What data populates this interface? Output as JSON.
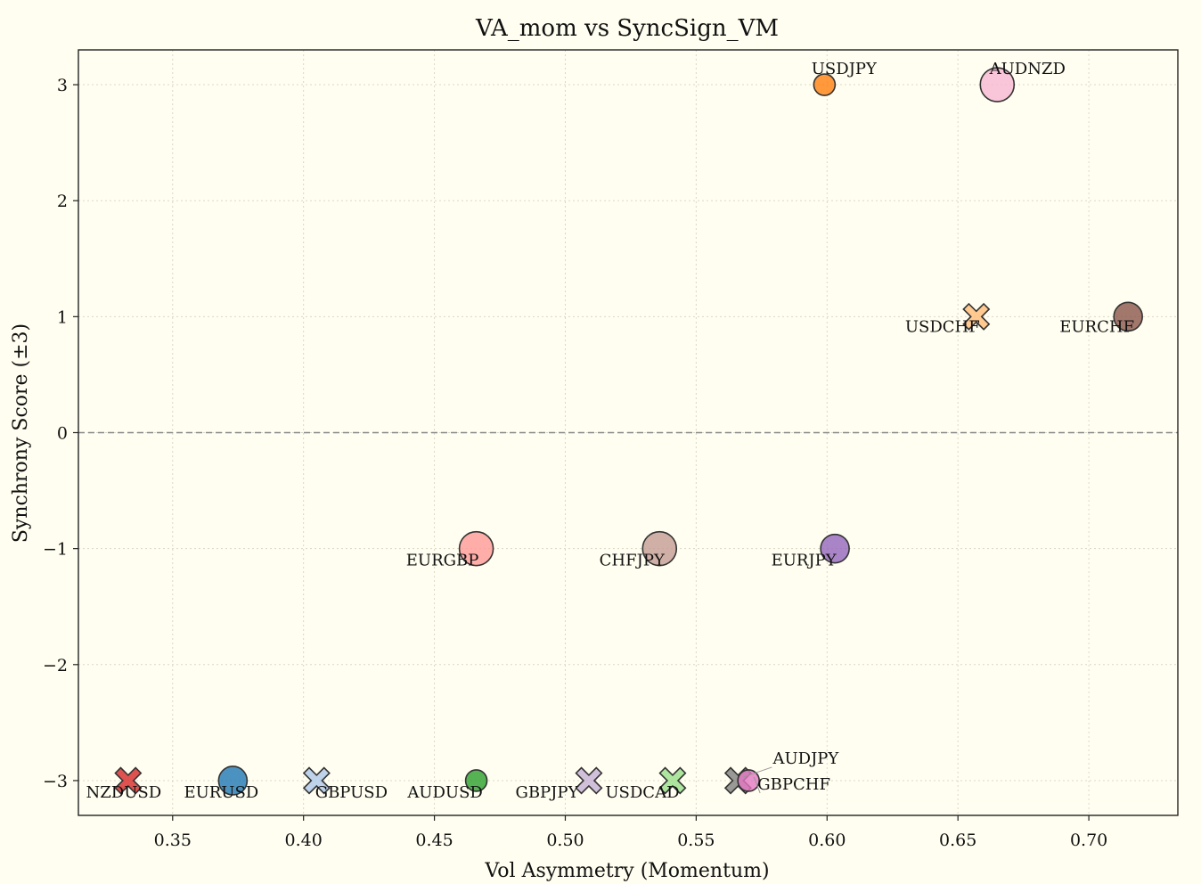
{
  "chart_data": {
    "type": "scatter",
    "title": "VA_mom vs SyncSign_VM",
    "xlabel": "Vol Asymmetry (Momentum)",
    "ylabel": "Synchrony Score (±3)",
    "xlim": [
      0.314,
      0.734
    ],
    "ylim": [
      -3.3,
      3.3
    ],
    "xticks": [
      0.35,
      0.4,
      0.45,
      0.5,
      0.55,
      0.6,
      0.65,
      0.7
    ],
    "xtick_labels": [
      "0.35",
      "0.40",
      "0.45",
      "0.50",
      "0.55",
      "0.60",
      "0.65",
      "0.70"
    ],
    "yticks": [
      3,
      2,
      1,
      0,
      -1,
      -2,
      -3
    ],
    "ytick_labels": [
      "3",
      "2",
      "1",
      "0",
      "−1",
      "−2",
      "−3"
    ],
    "grid": true,
    "reference_line_y": 0,
    "colors": {
      "background": "#fffef0",
      "marker_edge": "#333333",
      "reference_line": "#888888"
    },
    "points": [
      {
        "label": "USDJPY",
        "x": 0.599,
        "y": 3,
        "marker": "circle",
        "size": "small",
        "color": "#ff7f0e"
      },
      {
        "label": "AUDNZD",
        "x": 0.665,
        "y": 3,
        "marker": "circle",
        "size": "large",
        "color": "#f7b6d2"
      },
      {
        "label": "USDCHF",
        "x": 0.657,
        "y": 1,
        "marker": "x",
        "size": "medium",
        "color": "#ffbb78"
      },
      {
        "label": "EURCHF",
        "x": 0.715,
        "y": 1,
        "marker": "circle",
        "size": "medium",
        "color": "#8c564b"
      },
      {
        "label": "EURGBP",
        "x": 0.466,
        "y": -1,
        "marker": "circle",
        "size": "large",
        "color": "#ff9896"
      },
      {
        "label": "CHFJPY",
        "x": 0.536,
        "y": -1,
        "marker": "circle",
        "size": "large",
        "color": "#c49c94"
      },
      {
        "label": "EURJPY",
        "x": 0.603,
        "y": -1,
        "marker": "circle",
        "size": "medium",
        "color": "#9467bd"
      },
      {
        "label": "NZDUSD",
        "x": 0.333,
        "y": -3,
        "marker": "x",
        "size": "medium",
        "color": "#d62728"
      },
      {
        "label": "EURUSD",
        "x": 0.373,
        "y": -3,
        "marker": "circle",
        "size": "medium",
        "color": "#1f77b4"
      },
      {
        "label": "GBPUSD",
        "x": 0.405,
        "y": -3,
        "marker": "x",
        "size": "medium",
        "color": "#aec7e8"
      },
      {
        "label": "AUDUSD",
        "x": 0.466,
        "y": -3,
        "marker": "circle",
        "size": "small",
        "color": "#2ca02c"
      },
      {
        "label": "GBPJPY",
        "x": 0.509,
        "y": -3,
        "marker": "x",
        "size": "medium",
        "color": "#c5b0d5"
      },
      {
        "label": "USDCAD",
        "x": 0.541,
        "y": -3,
        "marker": "x",
        "size": "medium",
        "color": "#98df8a"
      },
      {
        "label": "AUDJPY",
        "x": 0.566,
        "y": -3,
        "marker": "x",
        "size": "medium",
        "color": "#7f7f7f"
      },
      {
        "label": "GBPCHF",
        "x": 0.57,
        "y": -3,
        "marker": "circle",
        "size": "small",
        "color": "#e377c2"
      }
    ]
  }
}
